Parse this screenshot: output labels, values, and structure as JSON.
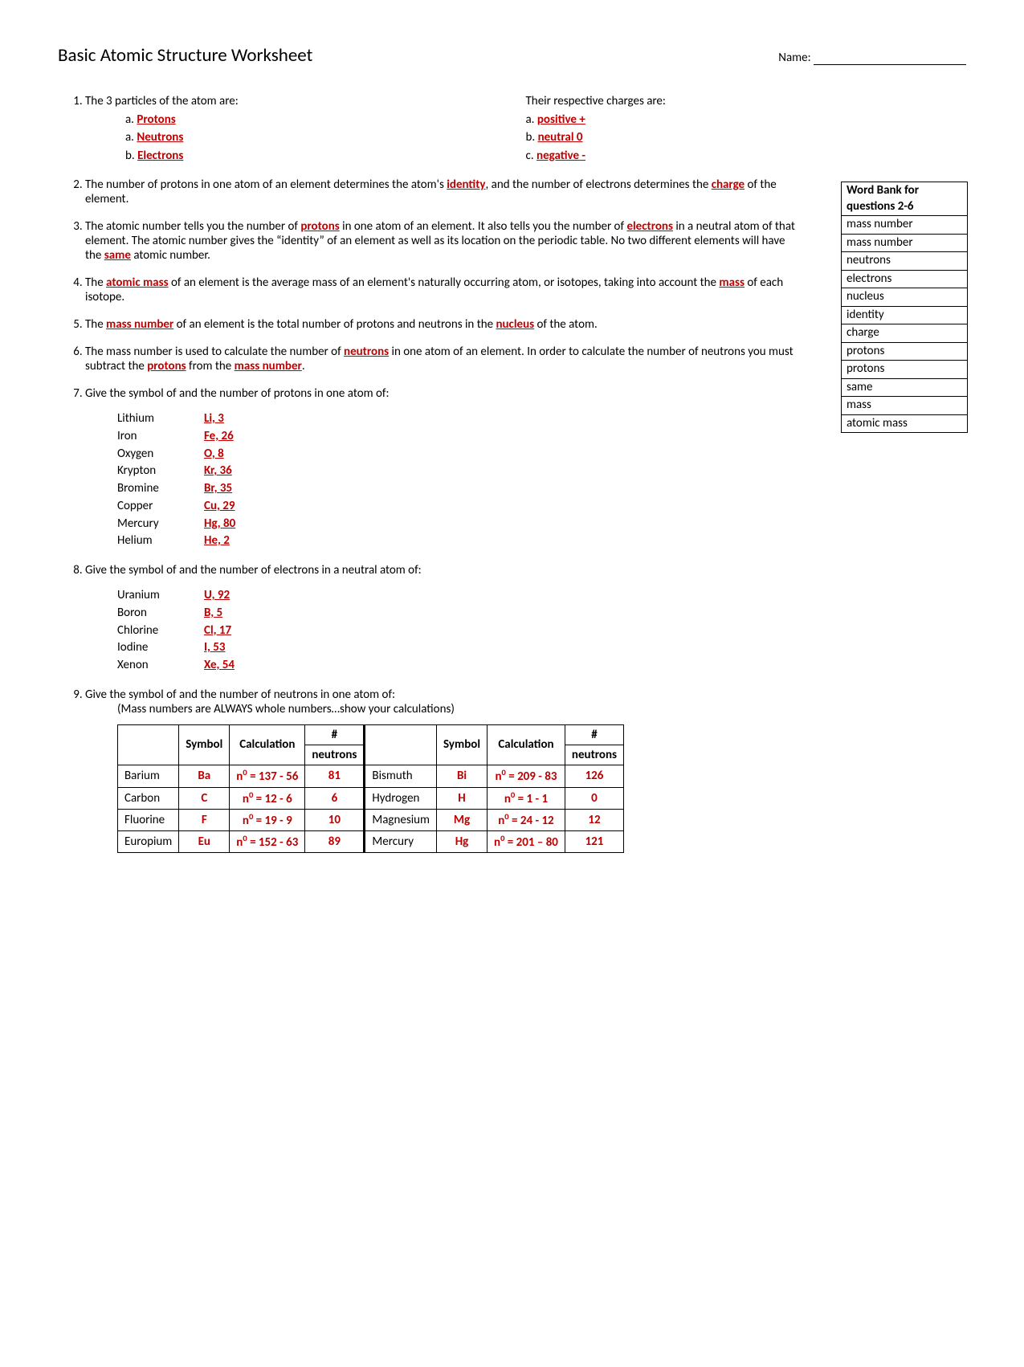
{
  "title": "Basic Atomic Structure Worksheet",
  "name_label": "Name:",
  "q1": {
    "prompt_left": "The 3 particles of the atom are:",
    "prompt_right": "Their respective charges are:",
    "left": [
      {
        "marker": "a.",
        "answer": "Protons"
      },
      {
        "marker": "a.",
        "answer": "Neutrons"
      },
      {
        "marker": "b.",
        "answer": "Electrons"
      }
    ],
    "right": [
      {
        "marker": "a.",
        "answer": "positive +"
      },
      {
        "marker": "b.",
        "answer": "neutral 0"
      },
      {
        "marker": "c.",
        "answer": "negative -"
      }
    ]
  },
  "q2": {
    "t1": "The number of protons in one atom of an element determines the atom's ",
    "a1": "identity",
    "t2": ", and the number of electrons determines the ",
    "a2": "charge",
    "t3": " of the element."
  },
  "q3": {
    "t1": "The atomic number tells you the number of ",
    "a1": "protons",
    "t2": " in one atom of an element. It also tells you the number of ",
    "a2": "electrons",
    "t3": " in a neutral atom of that element. The atomic number gives the “identity” of an element as well as its location on the periodic table. No two different elements will have the ",
    "a3": "same",
    "t4": " atomic number."
  },
  "q4": {
    "t1": "The ",
    "a1": "atomic mass",
    "t2": " of an element is the average mass of an element's naturally occurring atom, or isotopes, taking into account the ",
    "a2": "mass",
    "t3": " of each isotope."
  },
  "q5": {
    "t1": "The ",
    "a1": "mass number",
    "t2": " of an element is the total number of protons and neutrons in the ",
    "a2": "nucleus",
    "t3": " of the atom."
  },
  "q6": {
    "t1": "The mass number is used to calculate the number of ",
    "a1": "neutrons",
    "t2": " in one atom of an element. In order to calculate the number of neutrons you must subtract the ",
    "a2": "protons",
    "t3": " from the ",
    "a3": "mass number",
    "t4": "."
  },
  "q7": {
    "prompt": "Give the symbol of and the number of protons in one atom of:",
    "rows": [
      {
        "el": "Lithium",
        "ans": "Li, 3"
      },
      {
        "el": "Iron",
        "ans": "Fe, 26"
      },
      {
        "el": "Oxygen",
        "ans": "O, 8"
      },
      {
        "el": "Krypton",
        "ans": "Kr, 36"
      },
      {
        "el": "Bromine",
        "ans": "Br, 35"
      },
      {
        "el": "Copper",
        "ans": "Cu, 29"
      },
      {
        "el": "Mercury",
        "ans": "Hg, 80"
      },
      {
        "el": "Helium",
        "ans": "He, 2"
      }
    ]
  },
  "q8": {
    "prompt": "Give the symbol of and the number of electrons in a neutral atom of:",
    "rows": [
      {
        "el": "Uranium",
        "ans": "U, 92"
      },
      {
        "el": "Boron",
        "ans": "B, 5"
      },
      {
        "el": "Chlorine",
        "ans": "Cl, 17"
      },
      {
        "el": "Iodine",
        "ans": "I, 53"
      },
      {
        "el": "Xenon",
        "ans": "Xe, 54"
      }
    ]
  },
  "q9": {
    "prompt": "Give the symbol of and the number of neutrons in one atom of:",
    "note": "(Mass numbers are ALWAYS whole numbers…show your calculations)",
    "headers": {
      "c0": "",
      "symbol": "Symbol",
      "calc": "Calculation",
      "neutrons_top": "#",
      "neutrons_bot": "neutrons"
    },
    "left": [
      {
        "el": "Barium",
        "sym": "Ba",
        "calc": "= 137 - 56",
        "n": "81"
      },
      {
        "el": "Carbon",
        "sym": "C",
        "calc": "= 12 - 6",
        "n": "6"
      },
      {
        "el": "Fluorine",
        "sym": "F",
        "calc": "= 19 - 9",
        "n": "10"
      },
      {
        "el": "Europium",
        "sym": "Eu",
        "calc": "= 152 - 63",
        "n": "89"
      }
    ],
    "right": [
      {
        "el": "Bismuth",
        "sym": "Bi",
        "calc": "= 209 - 83",
        "n": "126"
      },
      {
        "el": "Hydrogen",
        "sym": "H",
        "calc": "= 1 - 1",
        "n": "0"
      },
      {
        "el": "Magnesium",
        "sym": "Mg",
        "calc": "= 24 - 12",
        "n": "12"
      },
      {
        "el": "Mercury",
        "sym": "Hg",
        "calc": "= 201 – 80",
        "n": "121"
      }
    ]
  },
  "word_bank": {
    "title": "Word Bank for questions 2-6",
    "items": [
      "mass number",
      "mass number",
      "neutrons",
      "electrons",
      "nucleus",
      "identity",
      "charge",
      "protons",
      "protons",
      "same",
      "mass",
      "atomic mass"
    ]
  },
  "colors": {
    "answer_red": "#c00000",
    "text": "#000000",
    "background": "#ffffff"
  }
}
